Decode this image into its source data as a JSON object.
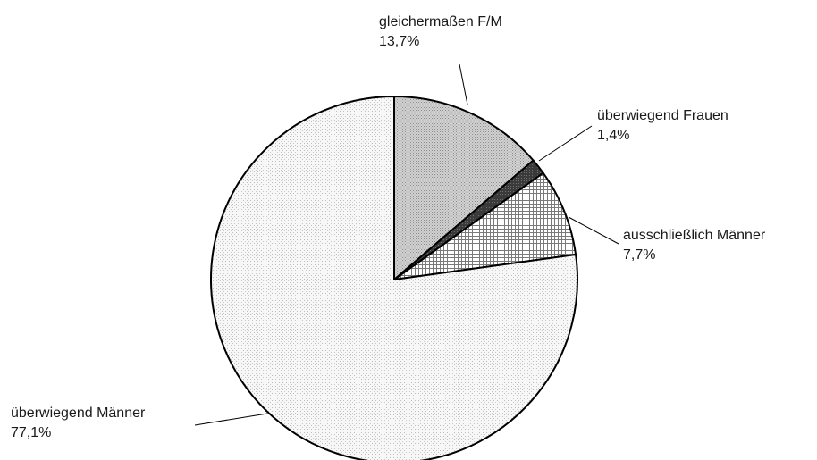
{
  "chart_data": {
    "type": "pie",
    "title": "",
    "start_angle_deg": 0,
    "direction": "clockwise",
    "slices": [
      {
        "name": "gleichermaßen F/M",
        "value": 13.7,
        "pct_label": "13,7%",
        "color": "#c8c8c8",
        "pattern": "dense-dots"
      },
      {
        "name": "überwiegend Frauen",
        "value": 1.4,
        "pct_label": "1,4%",
        "color": "#3c3c3c",
        "pattern": "dark"
      },
      {
        "name": "ausschließlich Männer",
        "value": 7.7,
        "pct_label": "7,7%",
        "color": "#dcdcdc",
        "pattern": "grid"
      },
      {
        "name": "überwiegend Männer",
        "value": 77.1,
        "pct_label": "77,1%",
        "color": "#f2f2f2",
        "pattern": "light-dots"
      }
    ]
  }
}
